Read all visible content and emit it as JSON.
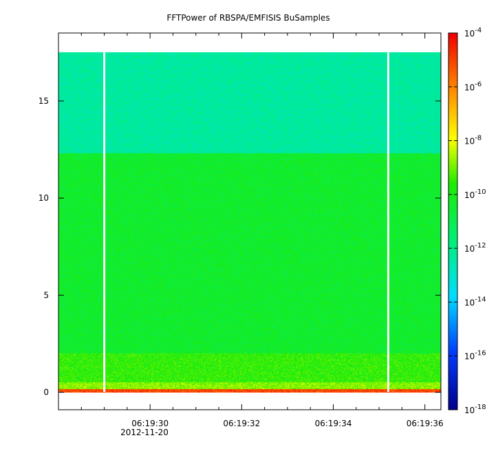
{
  "chart_data": {
    "type": "heatmap",
    "title": "FFTPower of RBSPA/EMFISIS  BuSamples",
    "xlabel": "",
    "ylabel": "",
    "x_ticks": [
      "06:19:30",
      "06:19:32",
      "06:19:34",
      "06:19:36"
    ],
    "x_tick_values": [
      30,
      32,
      34,
      36
    ],
    "x_date_label": "2012-11-20",
    "xlim": [
      28.0,
      36.35
    ],
    "y_ticks": [
      "0",
      "5",
      "10",
      "15"
    ],
    "y_tick_values": [
      0,
      5,
      10,
      15
    ],
    "ylim": [
      -0.9,
      18.5
    ],
    "data_ymax": 17.5,
    "gaps_x": [
      29.0,
      35.2
    ],
    "colorbar": {
      "scale": "log",
      "range": [
        1e-18,
        0.0001
      ],
      "ticks": [
        {
          "base": "10",
          "exp": "-4",
          "value": -4
        },
        {
          "base": "10",
          "exp": "-6",
          "value": -6
        },
        {
          "base": "10",
          "exp": "-8",
          "value": -8
        },
        {
          "base": "10",
          "exp": "-10",
          "value": -10
        },
        {
          "base": "10",
          "exp": "-12",
          "value": -12
        },
        {
          "base": "10",
          "exp": "-14",
          "value": -14
        },
        {
          "base": "10",
          "exp": "-16",
          "value": -16
        },
        {
          "base": "10",
          "exp": "-18",
          "value": -18
        }
      ]
    },
    "bands": [
      {
        "y0": 0.0,
        "y1": 0.15,
        "log_power": -5.0
      },
      {
        "y0": 0.15,
        "y1": 0.5,
        "log_power": -8.8
      },
      {
        "y0": 0.5,
        "y1": 2.0,
        "log_power": -9.6
      },
      {
        "y0": 2.0,
        "y1": 12.3,
        "log_power": -10.4
      },
      {
        "y0": 12.3,
        "y1": 17.5,
        "log_power": -12.3
      }
    ]
  }
}
